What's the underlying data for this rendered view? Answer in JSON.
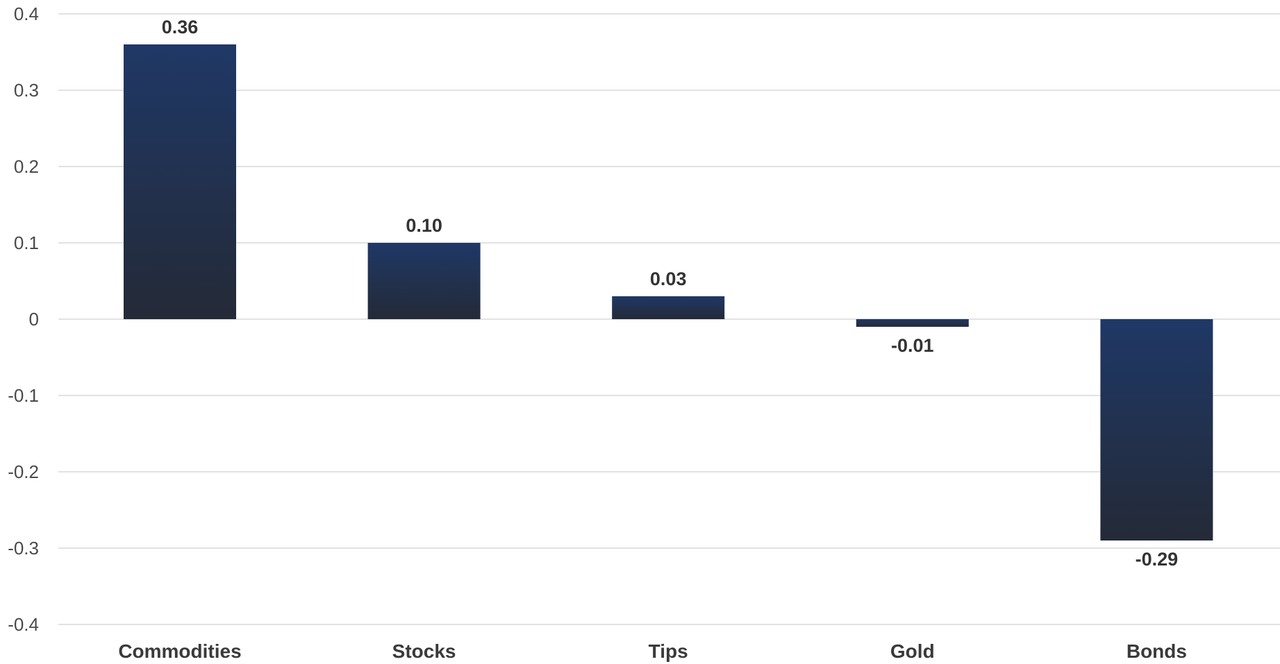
{
  "chart_data": {
    "type": "bar",
    "title": "",
    "xlabel": "",
    "ylabel": "",
    "categories": [
      "Commodities",
      "Stocks",
      "Tips",
      "Gold",
      "Bonds"
    ],
    "values": [
      0.36,
      0.1,
      0.03,
      -0.01,
      -0.29
    ],
    "data_labels": [
      "0.36",
      "0.10",
      "0.03",
      "-0.01",
      "-0.29"
    ],
    "ylim": [
      -0.4,
      0.4
    ],
    "yticks": [
      0.4,
      0.3,
      0.2,
      0.1,
      0,
      -0.1,
      -0.2,
      -0.3,
      -0.4
    ],
    "ytick_labels": [
      "0.4",
      "0.3",
      "0.2",
      "0.1",
      "0",
      "-0.1",
      "-0.2",
      "-0.3",
      "-0.4"
    ],
    "grid": true,
    "legend": "none",
    "colors": {
      "bar_top": "#1f3866",
      "bar_bottom": "#242a37",
      "grid": "#d9d9d9"
    }
  }
}
